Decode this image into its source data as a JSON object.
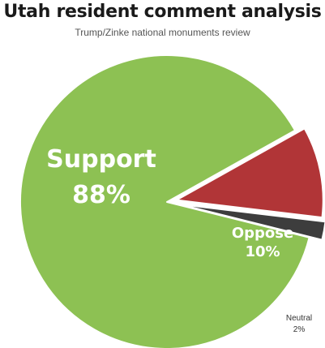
{
  "header": {
    "title": "Utah resident comment analysis",
    "subtitle": "Trump/Zinke national monuments review"
  },
  "chart_data": {
    "type": "pie",
    "title": "Utah resident comment analysis",
    "subtitle": "Trump/Zinke national monuments review",
    "slices": [
      {
        "name": "Support",
        "value": 88,
        "value_label": "88%",
        "color": "#8dc153"
      },
      {
        "name": "Oppose",
        "value": 10,
        "value_label": "10%",
        "color": "#b13537",
        "exploded": true
      },
      {
        "name": "Neutral",
        "value": 2,
        "value_label": "2%",
        "color": "#3d3d3d",
        "exploded": true
      }
    ]
  }
}
